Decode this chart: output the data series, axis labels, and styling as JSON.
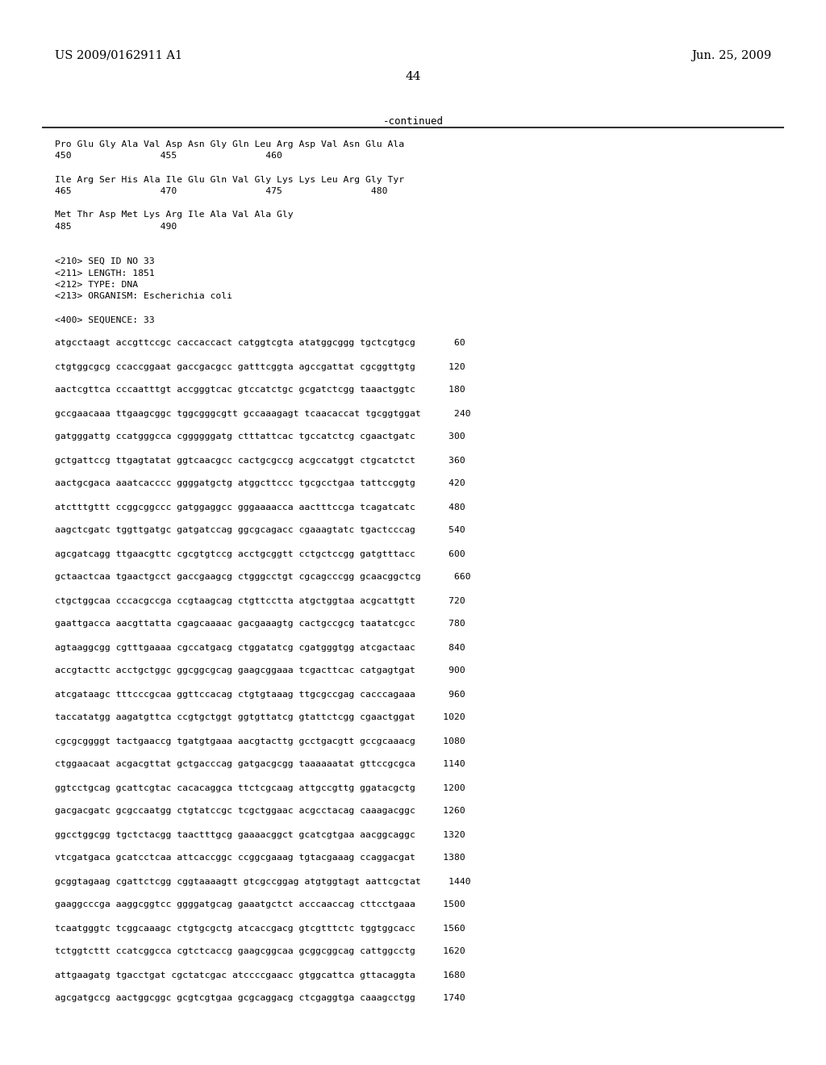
{
  "header_left": "US 2009/0162911 A1",
  "header_right": "Jun. 25, 2009",
  "page_number": "44",
  "continued_text": "-continued",
  "background_color": "#ffffff",
  "text_color": "#000000",
  "lines": [
    "Pro Glu Gly Ala Val Asp Asn Gly Gln Leu Arg Asp Val Asn Glu Ala",
    "450                455                460",
    "",
    "Ile Arg Ser His Ala Ile Glu Gln Val Gly Lys Lys Leu Arg Gly Tyr",
    "465                470                475                480",
    "",
    "Met Thr Asp Met Lys Arg Ile Ala Val Ala Gly",
    "485                490",
    "",
    "",
    "<210> SEQ ID NO 33",
    "<211> LENGTH: 1851",
    "<212> TYPE: DNA",
    "<213> ORGANISM: Escherichia coli",
    "",
    "<400> SEQUENCE: 33",
    "",
    "atgcctaagt accgttccgc caccaccact catggtcgta atatggcggg tgctcgtgcg       60",
    "",
    "ctgtggcgcg ccaccggaat gaccgacgcc gatttcggta agccgattat cgcggttgtg      120",
    "",
    "aactcgttca cccaatttgt accgggtcac gtccatctgc gcgatctcgg taaactggtc      180",
    "",
    "gccgaacaaa ttgaagcggc tggcgggcgtt gccaaagagt tcaacaccat tgcggtggat      240",
    "",
    "gatgggattg ccatgggcca cggggggatg ctttattcac tgccatctcg cgaactgatc      300",
    "",
    "gctgattccg ttgagtatat ggtcaacgcc cactgcgccg acgccatggt ctgcatctct      360",
    "",
    "aactgcgaca aaatcacccc ggggatgctg atggcttccc tgcgcctgaa tattccggtg      420",
    "",
    "atctttgttt ccggcggccc gatggaggcc gggaaaacca aactttccga tcagatcatc      480",
    "",
    "aagctcgatc tggttgatgc gatgatccag ggcgcagacc cgaaagtatc tgactcccag      540",
    "",
    "agcgatcagg ttgaacgttc cgcgtgtccg acctgcggtt cctgctccgg gatgtttacc      600",
    "",
    "gctaactcaa tgaactgcct gaccgaagcg ctgggcctgt cgcagcccgg gcaacggctcg      660",
    "",
    "ctgctggcaa cccacgccga ccgtaagcag ctgttcctta atgctggtaa acgcattgtt      720",
    "",
    "gaattgacca aacgttatta cgagcaaaac gacgaaagtg cactgccgcg taatatcgcc      780",
    "",
    "agtaaggcgg cgtttgaaaa cgccatgacg ctggatatcg cgatgggtgg atcgactaac      840",
    "",
    "accgtacttc acctgctggc ggcggcgcag gaagcggaaa tcgacttcac catgagtgat      900",
    "",
    "atcgataagc tttcccgcaa ggttccacag ctgtgtaaag ttgcgccgag cacccagaaa      960",
    "",
    "taccatatgg aagatgttca ccgtgctggt ggtgttatcg gtattctcgg cgaactggat     1020",
    "",
    "cgcgcggggt tactgaaccg tgatgtgaaa aacgtacttg gcctgacgtt gccgcaaacg     1080",
    "",
    "ctggaacaat acgacgttat gctgacccag gatgacgcgg taaaaaatat gttccgcgca     1140",
    "",
    "ggtcctgcag gcattcgtac cacacaggca ttctcgcaag attgccgttg ggatacgctg     1200",
    "",
    "gacgacgatc gcgccaatgg ctgtatccgc tcgctggaac acgcctacag caaagacggc     1260",
    "",
    "ggcctggcgg tgctctacgg taactttgcg gaaaacggct gcatcgtgaa aacggcaggc     1320",
    "",
    "vtcgatgaca gcatcctcaa attcaccggc ccggcgaaag tgtacgaaag ccaggacgat     1380",
    "",
    "gcggtagaag cgattctcgg cggtaaaagtt gtcgccggag atgtggtagt aattcgctat     1440",
    "",
    "gaaggcccga aaggcggtcc ggggatgcag gaaatgctct acccaaccag cttcctgaaa     1500",
    "",
    "tcaatgggtc tcggcaaagc ctgtgcgctg atcaccgacg gtcgtttctc tggtggcacc     1560",
    "",
    "tctggtcttt ccatcggcca cgtctcaccg gaagcggcaa gcggcggcag cattggcctg     1620",
    "",
    "attgaagatg tgacctgat cgctatcgac atccccgaacc gtggcattca gttacaggta     1680",
    "",
    "agcgatgccg aactggcggc gcgtcgtgaa gcgcaggacg ctcgaggtga caaagcctgg     1740"
  ]
}
